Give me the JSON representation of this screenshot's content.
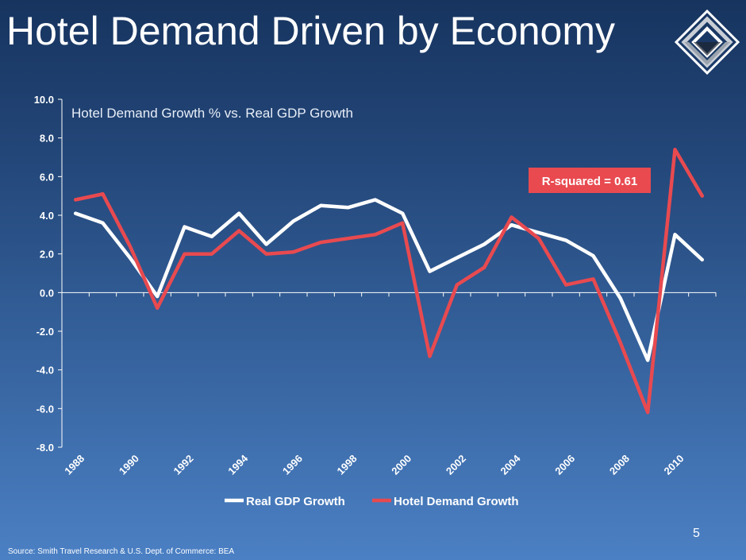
{
  "slide": {
    "title": "Hotel Demand Driven by Economy",
    "source": "Source:  Smith Travel Research & U.S. Dept. of Commerce: BEA",
    "page_number": "5"
  },
  "logo": {
    "icon": "diamond-logo-icon"
  },
  "chart_data": {
    "type": "line",
    "title": "Hotel Demand Growth % vs. Real GDP Growth",
    "xlabel": "",
    "ylabel": "",
    "x": [
      1988,
      1989,
      1990,
      1991,
      1992,
      1993,
      1994,
      1995,
      1996,
      1997,
      1998,
      1999,
      2000,
      2001,
      2002,
      2003,
      2004,
      2005,
      2006,
      2007,
      2008,
      2009,
      2010,
      2011
    ],
    "x_tick_labels": [
      "1988",
      "1990",
      "1992",
      "1994",
      "1996",
      "1998",
      "2000",
      "2002",
      "2004",
      "2006",
      "2008",
      "2010"
    ],
    "y_tick_labels": [
      "10.0",
      "8.0",
      "6.0",
      "4.0",
      "2.0",
      "0.0",
      "-2.0",
      "-4.0",
      "-6.0",
      "-8.0"
    ],
    "ylim": [
      -8,
      10
    ],
    "series": [
      {
        "name": "Real GDP Growth",
        "color": "#ffffff",
        "values": [
          4.1,
          3.6,
          1.8,
          -0.2,
          3.4,
          2.9,
          4.1,
          2.5,
          3.7,
          4.5,
          4.4,
          4.8,
          4.1,
          1.1,
          1.8,
          2.5,
          3.5,
          3.1,
          2.7,
          1.9,
          -0.3,
          -3.5,
          3.0,
          1.7
        ]
      },
      {
        "name": "Hotel Demand Growth",
        "color": "#e84a50",
        "values": [
          4.8,
          5.1,
          2.4,
          -0.8,
          2.0,
          2.0,
          3.2,
          2.0,
          2.1,
          2.6,
          2.8,
          3.0,
          3.6,
          -3.3,
          0.4,
          1.3,
          3.9,
          2.8,
          0.4,
          0.7,
          -2.6,
          -6.2,
          7.4,
          5.0
        ]
      }
    ],
    "annotation": {
      "text": "R-squared = 0.61",
      "color": "#e84a50"
    },
    "legend_position": "bottom"
  }
}
